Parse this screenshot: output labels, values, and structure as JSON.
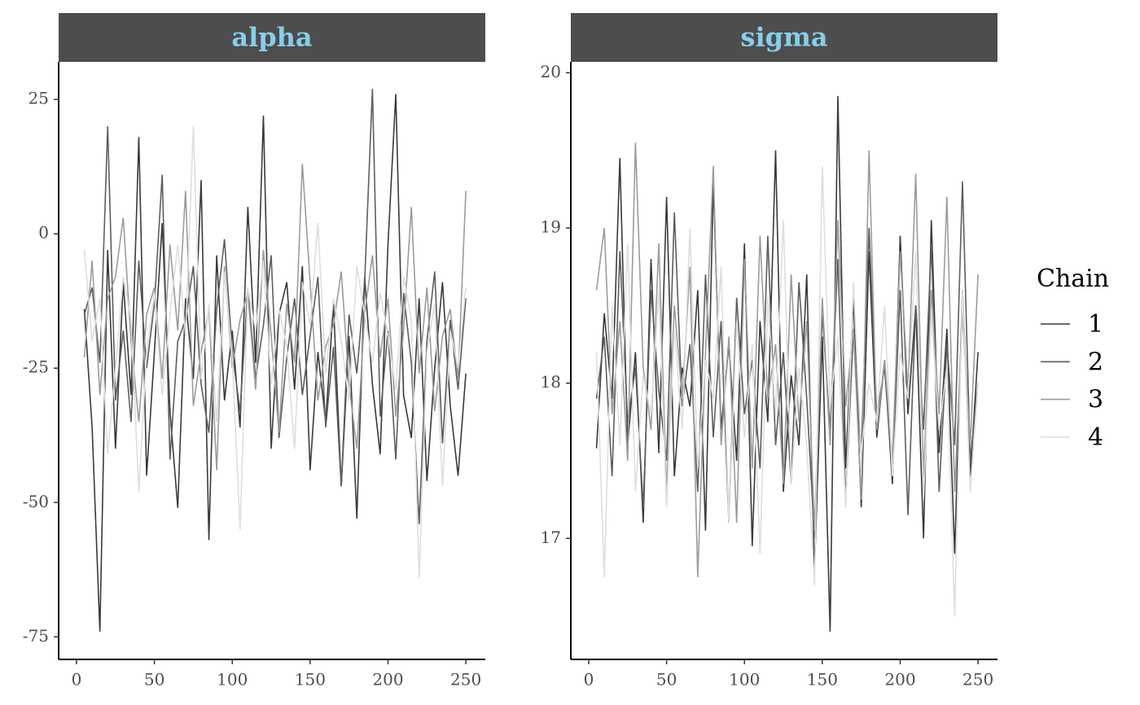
{
  "chart_data": [
    {
      "type": "line",
      "title": "alpha",
      "legend_title": "Chain",
      "grid": false,
      "x": [
        5,
        10,
        15,
        20,
        25,
        30,
        35,
        40,
        45,
        50,
        55,
        60,
        65,
        70,
        75,
        80,
        85,
        90,
        95,
        100,
        105,
        110,
        115,
        120,
        125,
        130,
        135,
        140,
        145,
        150,
        155,
        160,
        165,
        170,
        175,
        180,
        185,
        190,
        195,
        200,
        205,
        210,
        215,
        220,
        225,
        230,
        235,
        240,
        245,
        250
      ],
      "xlim": [
        -11.5,
        262.5
      ],
      "xticks": [
        0,
        50,
        100,
        150,
        200,
        250
      ],
      "ylim": [
        -79.2,
        32
      ],
      "yticks": [
        -75,
        -50,
        -25,
        0,
        25
      ],
      "series": [
        {
          "name": "1",
          "color": "#3a3a3a",
          "values": [
            -14,
            -36,
            -74,
            -3,
            -40,
            -9,
            -30,
            18,
            -45,
            -22,
            2,
            -33,
            -51,
            -12,
            -27,
            10,
            -57,
            -4,
            -31,
            -18,
            -36,
            5,
            -24,
            22,
            -40,
            -15,
            -9,
            -29,
            -6,
            -44,
            -22,
            -35,
            -13,
            -47,
            -19,
            -53,
            -8,
            -28,
            -41,
            -2,
            26,
            -30,
            -38,
            -12,
            -46,
            -25,
            -9,
            -32,
            -45,
            -26
          ]
        },
        {
          "name": "2",
          "color": "#5e5e5e",
          "values": [
            -15,
            -10,
            -24,
            20,
            -31,
            -18,
            -35,
            -5,
            -25,
            -13,
            11,
            -42,
            -20,
            -16,
            -6,
            -28,
            -37,
            -14,
            -1,
            -22,
            -33,
            -10,
            -27,
            -17,
            -4,
            -38,
            -23,
            -12,
            -30,
            -19,
            -8,
            -36,
            -21,
            -47,
            -15,
            -26,
            -9,
            27,
            -34,
            -18,
            -42,
            -11,
            -24,
            -54,
            -20,
            -7,
            -39,
            -16,
            -29,
            -12
          ]
        },
        {
          "name": "3",
          "color": "#9c9c9c",
          "values": [
            -23,
            -5,
            -30,
            -12,
            -8,
            3,
            -20,
            -35,
            -15,
            -10,
            -27,
            -2,
            -18,
            8,
            -32,
            -22,
            -14,
            -44,
            -6,
            -25,
            -16,
            -11,
            -29,
            -3,
            -19,
            -37,
            -13,
            -24,
            13,
            -9,
            -31,
            -21,
            -17,
            -7,
            -28,
            -40,
            -15,
            -4,
            -23,
            -12,
            -34,
            -18,
            5,
            -26,
            -10,
            -33,
            -19,
            -14,
            -27,
            8
          ]
        },
        {
          "name": "4",
          "color": "#dedede",
          "values": [
            -3,
            -20,
            -12,
            -41,
            -25,
            -8,
            -16,
            -48,
            -22,
            -11,
            -30,
            -15,
            -2,
            -19,
            20,
            -27,
            -13,
            -35,
            -7,
            -23,
            -55,
            -10,
            -18,
            -5,
            -28,
            -14,
            -21,
            -40,
            -9,
            -17,
            2,
            -26,
            -12,
            -20,
            -31,
            -6,
            -15,
            -24,
            -11,
            -19,
            -29,
            -8,
            -16,
            -64,
            -22,
            -13,
            -47,
            -18,
            -25,
            -10
          ]
        }
      ]
    },
    {
      "type": "line",
      "title": "sigma",
      "grid": false,
      "x": [
        5,
        10,
        15,
        20,
        25,
        30,
        35,
        40,
        45,
        50,
        55,
        60,
        65,
        70,
        75,
        80,
        85,
        90,
        95,
        100,
        105,
        110,
        115,
        120,
        125,
        130,
        135,
        140,
        145,
        150,
        155,
        160,
        165,
        170,
        175,
        180,
        185,
        190,
        195,
        200,
        205,
        210,
        215,
        220,
        225,
        230,
        235,
        240,
        245,
        250
      ],
      "xlim": [
        -11.5,
        262.5
      ],
      "xticks": [
        0,
        50,
        100,
        150,
        200,
        250
      ],
      "ylim": [
        16.22,
        20.07
      ],
      "yticks": [
        17,
        18,
        19,
        20
      ],
      "series": [
        {
          "name": "1",
          "color": "#3a3a3a",
          "values": [
            17.58,
            18.45,
            17.9,
            19.45,
            17.6,
            18.2,
            17.1,
            18.8,
            17.55,
            19.2,
            17.4,
            18.1,
            17.85,
            18.6,
            17.05,
            19.3,
            17.7,
            18.25,
            17.5,
            18.9,
            16.95,
            18.4,
            17.75,
            19.5,
            17.3,
            18.05,
            17.6,
            18.7,
            16.8,
            18.3,
            16.4,
            19.85,
            17.45,
            18.55,
            17.2,
            18.85,
            17.65,
            18.15,
            17.35,
            18.95,
            17.8,
            18.5,
            17.0,
            19.05,
            17.55,
            18.35,
            16.9,
            18.6,
            17.4,
            18.2
          ]
        },
        {
          "name": "2",
          "color": "#5e5e5e",
          "values": [
            17.9,
            18.3,
            17.4,
            18.85,
            17.75,
            18.1,
            17.2,
            18.6,
            17.95,
            17.5,
            19.1,
            17.85,
            18.25,
            17.3,
            18.7,
            17.65,
            18.4,
            17.1,
            18.55,
            17.8,
            18.15,
            17.45,
            18.95,
            17.6,
            18.2,
            17.35,
            18.65,
            17.9,
            17.0,
            18.45,
            17.7,
            18.8,
            17.25,
            18.35,
            17.55,
            19.0,
            17.8,
            18.1,
            17.4,
            18.6,
            17.15,
            18.5,
            17.7,
            18.9,
            17.3,
            18.25,
            17.6,
            19.3,
            17.5,
            18.0
          ]
        },
        {
          "name": "3",
          "color": "#9c9c9c",
          "values": [
            18.6,
            19.0,
            17.8,
            18.4,
            17.5,
            19.55,
            18.1,
            17.7,
            18.9,
            17.3,
            18.5,
            17.9,
            18.75,
            16.75,
            18.2,
            19.4,
            17.6,
            18.3,
            17.1,
            18.8,
            17.45,
            18.95,
            17.9,
            18.25,
            17.35,
            18.7,
            17.75,
            18.4,
            17.05,
            18.55,
            17.6,
            19.05,
            17.85,
            18.35,
            17.25,
            19.5,
            17.7,
            18.15,
            17.5,
            18.85,
            17.95,
            19.35,
            17.4,
            18.6,
            17.8,
            19.2,
            17.3,
            18.45,
            17.6,
            18.7
          ]
        },
        {
          "name": "4",
          "color": "#dedede",
          "values": [
            18.2,
            16.75,
            18.5,
            17.6,
            18.9,
            17.3,
            18.05,
            17.8,
            18.6,
            17.2,
            18.35,
            17.7,
            19.0,
            17.45,
            18.15,
            17.9,
            18.75,
            17.1,
            18.4,
            17.65,
            18.25,
            16.9,
            18.55,
            17.8,
            19.05,
            17.35,
            18.1,
            17.6,
            16.7,
            19.4,
            17.85,
            18.3,
            17.2,
            18.65,
            17.55,
            18.0,
            17.75,
            18.5,
            17.4,
            18.2,
            17.9,
            18.85,
            17.25,
            18.45,
            17.7,
            18.1,
            16.5,
            18.6,
            17.3,
            18.0
          ]
        }
      ]
    }
  ]
}
